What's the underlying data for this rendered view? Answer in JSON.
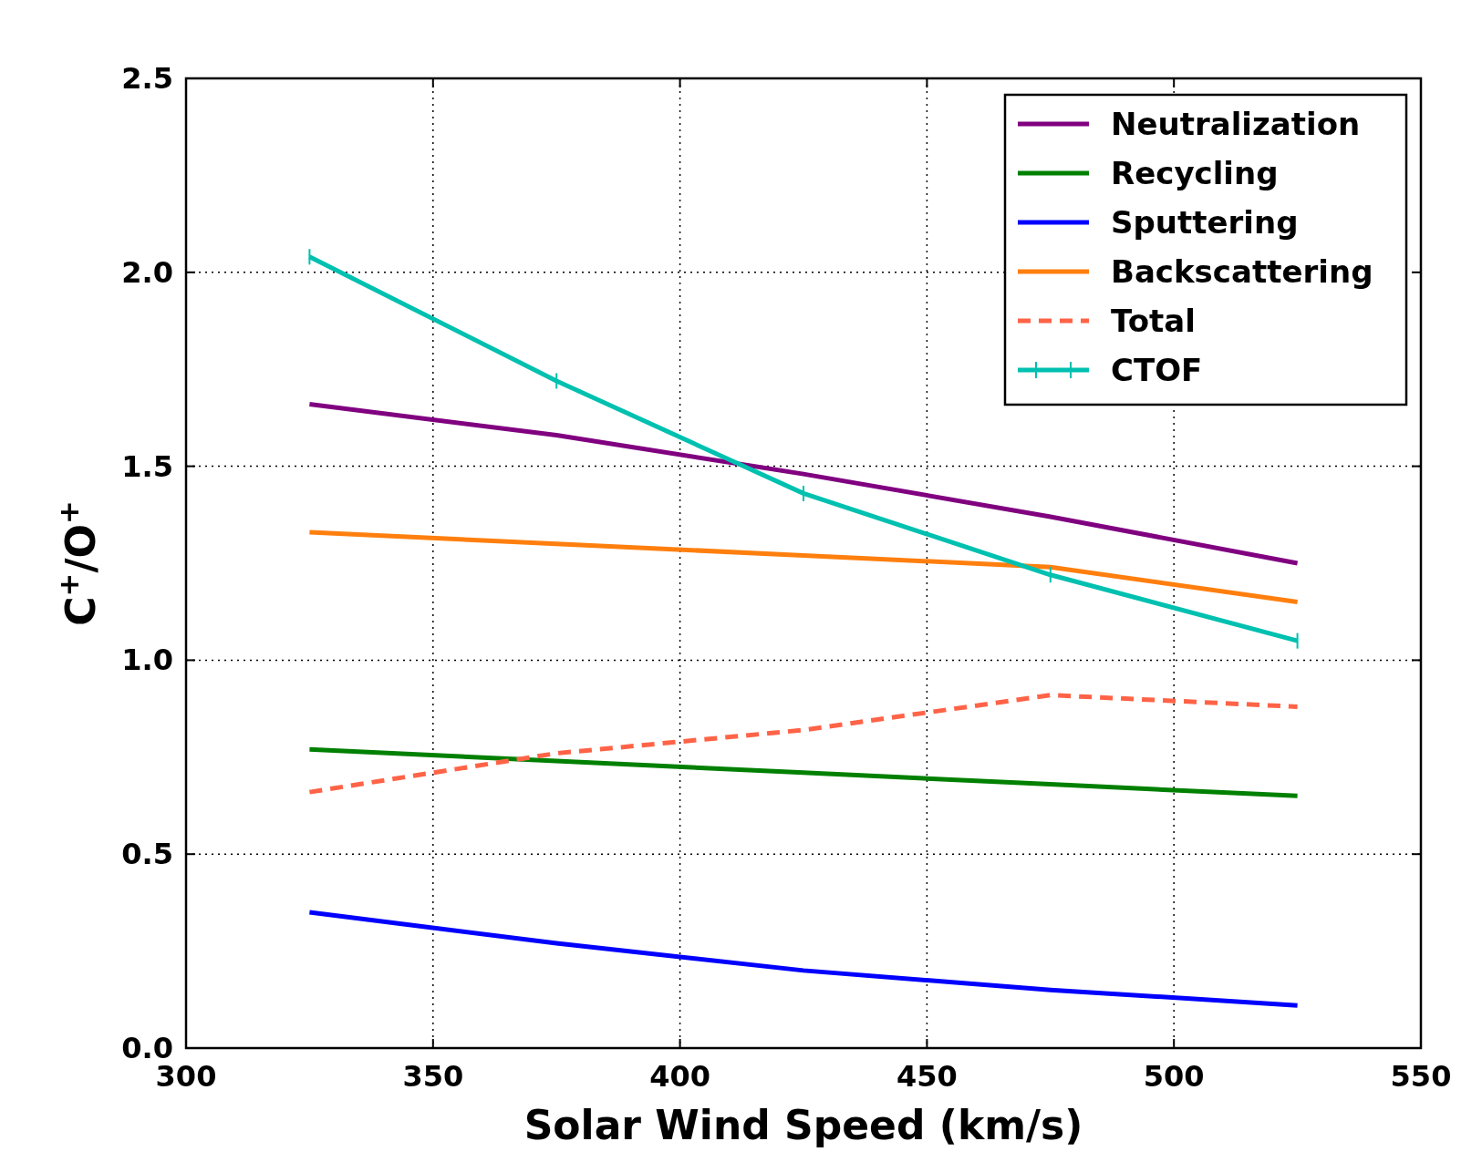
{
  "chart_data": {
    "type": "line",
    "xlabel": "Solar Wind Speed (km/s)",
    "ylabel": "C$^{+}$/O$^{+}$",
    "x": [
      325,
      375,
      425,
      475,
      525
    ],
    "xlim": [
      300,
      550
    ],
    "xticks": [
      300,
      350,
      400,
      450,
      500,
      550
    ],
    "ylim": [
      0,
      2.5
    ],
    "yticks": [
      {
        "value": 0,
        "label": "0.0"
      },
      {
        "value": 0.5,
        "label": "0.5"
      },
      {
        "value": 1,
        "label": "1.0"
      },
      {
        "value": 1.5,
        "label": "1.5"
      },
      {
        "value": 2,
        "label": "2.0"
      },
      {
        "value": 2.5,
        "label": "2.5"
      }
    ],
    "grid": true,
    "legend": "top right",
    "line_style": "solid",
    "series": [
      {
        "name": "Neutralization",
        "color": "#800080",
        "values": [
          1.66,
          1.58,
          1.48,
          1.37,
          1.25
        ]
      },
      {
        "name": "Recycling",
        "color": "#008000",
        "values": [
          0.77,
          0.74,
          0.71,
          0.68,
          0.65
        ]
      },
      {
        "name": "Sputtering",
        "color": "#0000ff",
        "values": [
          0.35,
          0.27,
          0.2,
          0.15,
          0.11
        ]
      },
      {
        "name": "Backscattering",
        "color": "#ff7f0e",
        "values": [
          1.33,
          1.3,
          1.27,
          1.24,
          1.15
        ]
      },
      {
        "name": "Total",
        "color": "#ff6347",
        "line_style": "dashed",
        "values": [
          0.66,
          0.76,
          0.82,
          0.91,
          0.88
        ]
      },
      {
        "name": "CTOF",
        "color": "#00c0b0",
        "values": [
          2.04,
          1.72,
          1.43,
          1.22,
          1.05
        ],
        "errors": [
          0.02,
          0.02,
          0.02,
          0.02,
          0.02
        ]
      }
    ]
  }
}
